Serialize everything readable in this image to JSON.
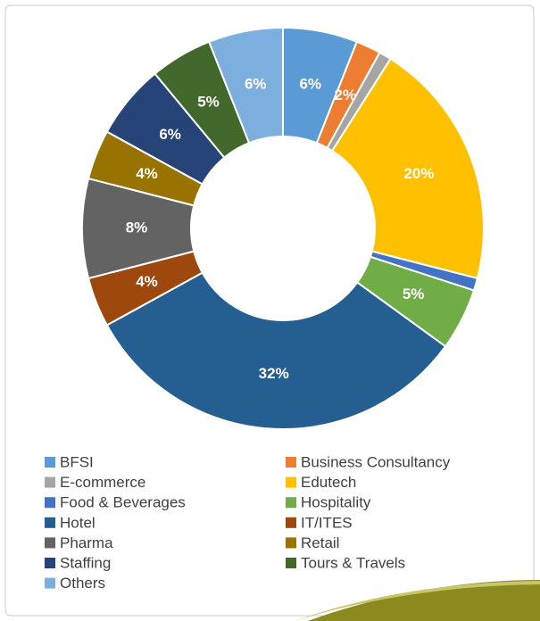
{
  "chart_data": {
    "type": "pie",
    "categories": [
      "BFSI",
      "Business Consultancy",
      "E-commerce",
      "Edutech",
      "Food & Beverages",
      "Hospitality",
      "Hotel",
      "IT/ITES",
      "Pharma",
      "Retail",
      "Staffing",
      "Tours & Travels",
      "Others"
    ],
    "values": [
      6,
      2,
      1,
      20,
      1,
      5,
      32,
      4,
      8,
      4,
      6,
      5,
      6
    ],
    "value_labels": [
      "6%",
      "2%",
      null,
      "20%",
      null,
      "5%",
      "32%",
      "4%",
      "8%",
      "4%",
      "6%",
      "5%",
      "6%"
    ],
    "colors": [
      "#5b9bd5",
      "#ed7d31",
      "#a5a5a5",
      "#ffc000",
      "#4472c4",
      "#70ad47",
      "#255e91",
      "#9e480e",
      "#636363",
      "#997300",
      "#264478",
      "#43682b",
      "#7cafdd"
    ],
    "donut": true,
    "legend": "bottom"
  }
}
